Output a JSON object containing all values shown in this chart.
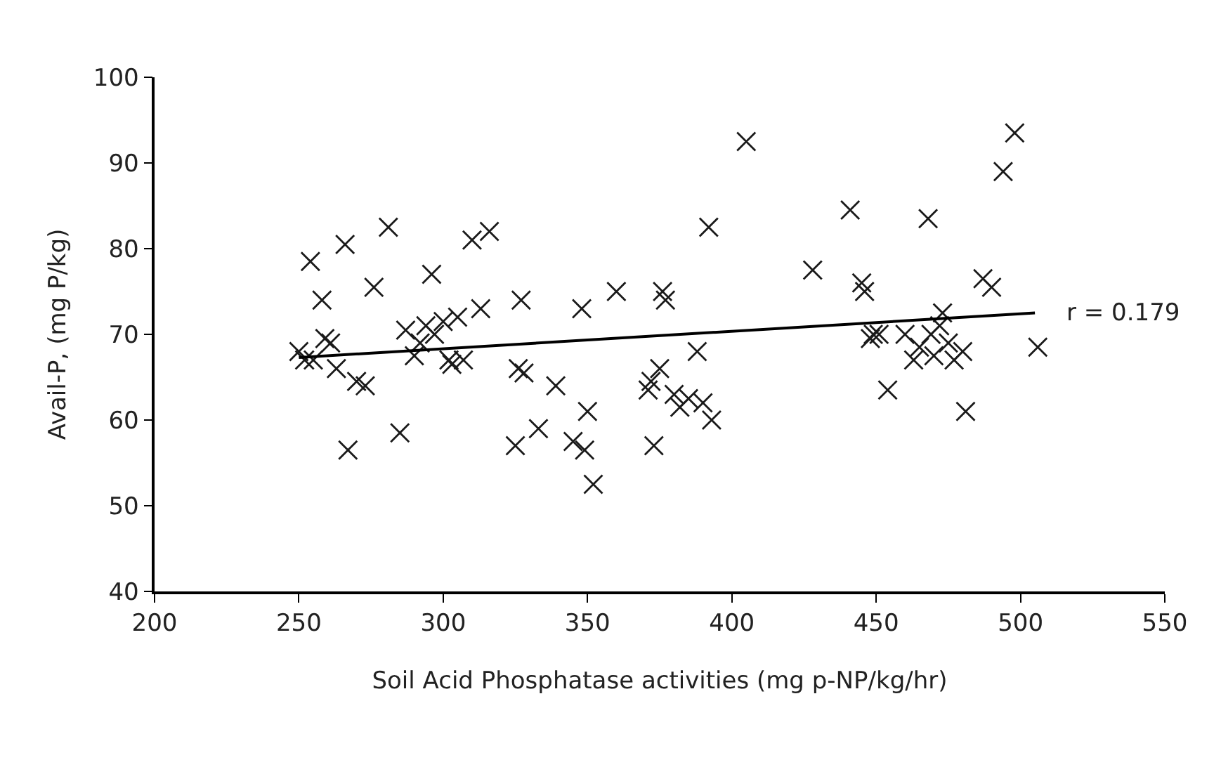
{
  "chart_data": {
    "type": "scatter",
    "xlabel": "Soil Acid Phosphatase activities (mg p-NP/kg/hr)",
    "ylabel": "Avail-P, (mg P/kg)",
    "xlim": [
      200,
      550
    ],
    "xticks": [
      200,
      250,
      300,
      350,
      400,
      450,
      500,
      550
    ],
    "ylim": [
      40,
      100
    ],
    "yticks": [
      40,
      50,
      60,
      70,
      80,
      90,
      100
    ],
    "series": [
      {
        "marker": "cross",
        "color": "#1a1a1a",
        "x": [
          250,
          252,
          254,
          255,
          258,
          259,
          261,
          263,
          266,
          267,
          270,
          273,
          276,
          281,
          285,
          287,
          290,
          292,
          294,
          296,
          297,
          300,
          302,
          303,
          305,
          307,
          310,
          313,
          316,
          325,
          326,
          327,
          328,
          333,
          339,
          345,
          348,
          349,
          350,
          352,
          360,
          371,
          372,
          373,
          375,
          376,
          377,
          380,
          382,
          385,
          388,
          390,
          392,
          393,
          405,
          428,
          441,
          445,
          446,
          448,
          449,
          451,
          454,
          460,
          463,
          465,
          468,
          469,
          470,
          472,
          473,
          475,
          477,
          480,
          481,
          487,
          490,
          494,
          498,
          506
        ],
        "values": [
          68,
          67,
          78.5,
          67,
          74,
          69.5,
          69,
          66,
          80.5,
          56.5,
          64.5,
          64,
          75.5,
          82.5,
          58.5,
          70.5,
          67.5,
          69,
          71,
          77,
          70,
          71.5,
          67,
          66.5,
          72,
          67,
          81,
          73,
          82,
          57,
          66,
          74,
          65.5,
          59,
          64,
          57.5,
          73,
          56.5,
          61,
          52.5,
          75,
          63.5,
          64.5,
          57,
          66,
          75,
          74,
          63,
          61.5,
          62.5,
          68,
          62,
          82.5,
          60,
          92.5,
          77.5,
          84.5,
          76,
          75,
          69.5,
          70,
          70,
          63.5,
          70,
          67,
          68.5,
          83.5,
          70,
          67.5,
          71,
          72.5,
          69,
          67,
          68,
          61,
          76.5,
          75.5,
          89,
          93.5,
          68.5
        ]
      },
      {
        "type": "line",
        "color": "#000000",
        "x": [
          250,
          505
        ],
        "values": [
          67.3,
          72.5
        ],
        "marker": "none",
        "line_style": "solid"
      }
    ],
    "annotations": [
      {
        "text": "r = 0.179",
        "x": 505,
        "y": 72.5
      }
    ]
  }
}
